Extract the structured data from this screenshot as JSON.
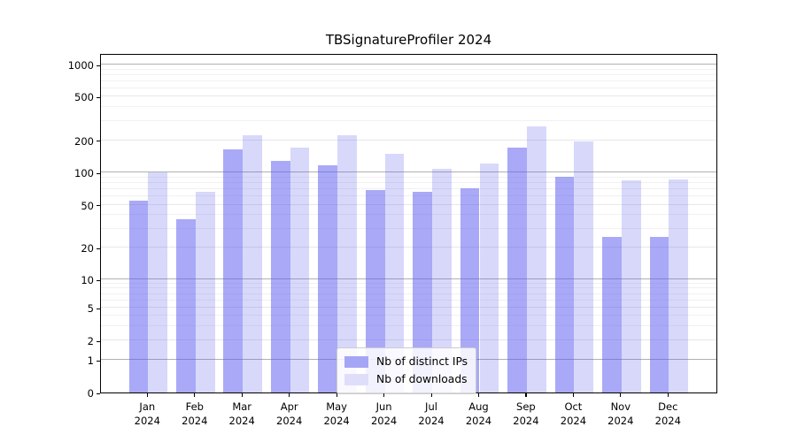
{
  "chart_data": {
    "type": "bar",
    "title": "TBSignatureProfiler 2024",
    "categories": [
      "Jan 2024",
      "Feb 2024",
      "Mar 2024",
      "Apr 2024",
      "May 2024",
      "Jun 2024",
      "Jul 2024",
      "Aug 2024",
      "Sep 2024",
      "Oct 2024",
      "Nov 2024",
      "Dec 2024"
    ],
    "series": [
      {
        "name": "Nb of distinct IPs",
        "color": "rgba(90,90,240,0.52)",
        "swatch_color": "#a5a5f6",
        "values": [
          55,
          37,
          166,
          129,
          118,
          68,
          66,
          71,
          170,
          92,
          25,
          25
        ]
      },
      {
        "name": "Nb of downloads",
        "color": "rgba(90,90,240,0.235)",
        "swatch_color": "#dedefb",
        "values": [
          100,
          66,
          222,
          172,
          223,
          150,
          109,
          122,
          270,
          195,
          84,
          86
        ]
      }
    ],
    "y_ticks": [
      0,
      1,
      2,
      5,
      10,
      20,
      50,
      100,
      200,
      500,
      1000
    ],
    "y_major_gridlines": [
      1,
      10,
      100,
      1000
    ],
    "y_minor_gridlines": [
      3,
      4,
      6,
      7,
      8,
      9,
      30,
      40,
      60,
      70,
      80,
      90,
      300,
      400,
      600,
      700,
      800,
      900
    ],
    "scale": "symlog",
    "ylim": [
      0,
      1300
    ],
    "grid": "on",
    "legend_position": "lower center"
  }
}
